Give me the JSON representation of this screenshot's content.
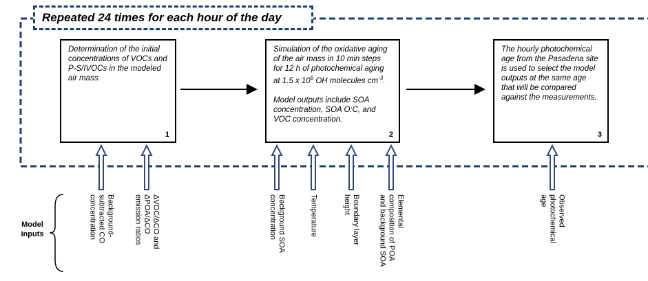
{
  "banner": "Repeated 24 times for each hour of the day",
  "steps": [
    {
      "text": "Determination of the initial concentrations of VOCs and P-S/IVOCs in the modeled air mass.",
      "number": "1"
    },
    {
      "text_parts": [
        "Simulation of the oxidative aging of the air mass in 10 min steps for 12 h of photochemical aging at 1.5 x 10",
        "6",
        " OH molecules cm",
        "-3",
        "."
      ],
      "text2": "Model outputs include SOA concentration, SOA O:C, and VOC concentration.",
      "number": "2"
    },
    {
      "text": "The hourly photochemical age from the Pasadena site is used to select the model outputs at the same age that will be compared against the measurements.",
      "number": "3"
    }
  ],
  "inputs_label": "Model inputs",
  "inputs": [
    {
      "lines": [
        "Background-",
        "subtracted CO",
        "concentration"
      ]
    },
    {
      "lines": [
        "ΔVOC/ΔCO and",
        "ΔPOA/ΔCO",
        "emission ratios"
      ]
    },
    {
      "lines": [
        "Background SOA",
        "concentration"
      ]
    },
    {
      "lines": [
        "Temperature"
      ]
    },
    {
      "lines": [
        "Boundary layer",
        "height"
      ]
    },
    {
      "lines": [
        "Elemental",
        "composition of POA",
        "and background SOA"
      ]
    },
    {
      "lines": [
        "Observed",
        "photochemical",
        "age"
      ]
    }
  ]
}
